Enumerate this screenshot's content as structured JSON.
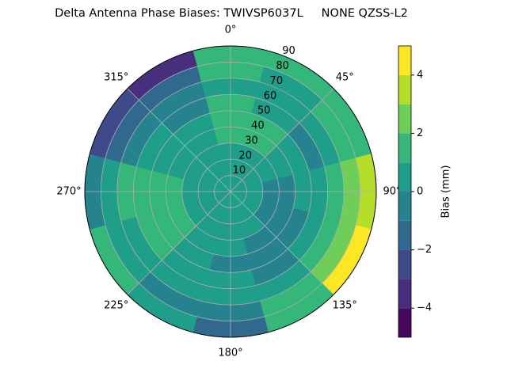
{
  "chart_data": {
    "type": "polar-contour",
    "title": "Delta Antenna Phase Biases: TWIVSP6037L     NONE QZSS-L2",
    "azimuth": [
      0,
      30,
      60,
      90,
      120,
      150,
      180,
      210,
      240,
      270,
      300,
      330
    ],
    "zenith": [
      5,
      15,
      25,
      35,
      45,
      55,
      65,
      75,
      85
    ],
    "values": [
      [
        0.5,
        0.5,
        0.5,
        1.5,
        1.5,
        1.5,
        0.5,
        1.5,
        1.5
      ],
      [
        0.5,
        0.5,
        0.5,
        1.5,
        1.5,
        0.5,
        0.5,
        0.5,
        1.5
      ],
      [
        0.5,
        0.5,
        0.5,
        0.5,
        0.5,
        -0.5,
        0.5,
        1.5,
        1.5
      ],
      [
        0.5,
        0.5,
        -0.5,
        -0.5,
        0.5,
        0.5,
        1.5,
        2.5,
        3.5
      ],
      [
        0.5,
        0.5,
        -0.5,
        -0.5,
        -0.5,
        0.5,
        1.5,
        2.5,
        4.5
      ],
      [
        0.5,
        0.5,
        0.5,
        -0.5,
        -0.5,
        -0.5,
        0.5,
        1.5,
        1.5
      ],
      [
        0.5,
        0.5,
        0.5,
        0.5,
        -0.5,
        0.5,
        0.5,
        -0.5,
        -1.5
      ],
      [
        0.5,
        0.5,
        0.5,
        0.5,
        0.5,
        0.5,
        0.5,
        -0.5,
        0.5
      ],
      [
        0.5,
        0.5,
        0.5,
        1.5,
        1.5,
        1.5,
        0.5,
        0.5,
        1.5
      ],
      [
        0.5,
        0.5,
        0.5,
        1.5,
        1.5,
        1.5,
        1.5,
        0.5,
        -0.5
      ],
      [
        0.5,
        0.5,
        0.5,
        0.5,
        0.5,
        0.5,
        -0.5,
        -1.5,
        -2.5
      ],
      [
        0.5,
        0.5,
        0.5,
        0.5,
        0.5,
        -0.5,
        -0.5,
        -1.5,
        -3.5
      ]
    ],
    "rlim": [
      0,
      90
    ],
    "rticks": [
      10,
      20,
      30,
      40,
      50,
      60,
      70,
      80,
      90
    ],
    "thetaticks": [
      {
        "value": 0,
        "label": "0°"
      },
      {
        "value": 45,
        "label": "45°"
      },
      {
        "value": 90,
        "label": "90°"
      },
      {
        "value": 135,
        "label": "135°"
      },
      {
        "value": 180,
        "label": "180°"
      },
      {
        "value": 225,
        "label": "225°"
      },
      {
        "value": 270,
        "label": "270°"
      },
      {
        "value": 315,
        "label": "315°"
      }
    ],
    "levels": [
      -5,
      -4,
      -3,
      -2,
      -1,
      0,
      1,
      2,
      3,
      4,
      5
    ],
    "colors": [
      "#46085c",
      "#472f7d",
      "#3e4a89",
      "#31688e",
      "#26828e",
      "#1f9e89",
      "#35b779",
      "#6ece58",
      "#b5de2b",
      "#fde725"
    ],
    "clim": [
      -5,
      5
    ],
    "cticks": [
      {
        "value": -4,
        "label": "−4"
      },
      {
        "value": -2,
        "label": "−2"
      },
      0,
      2,
      4
    ],
    "colorbar_label": "Bias (mm)",
    "grid": true
  }
}
